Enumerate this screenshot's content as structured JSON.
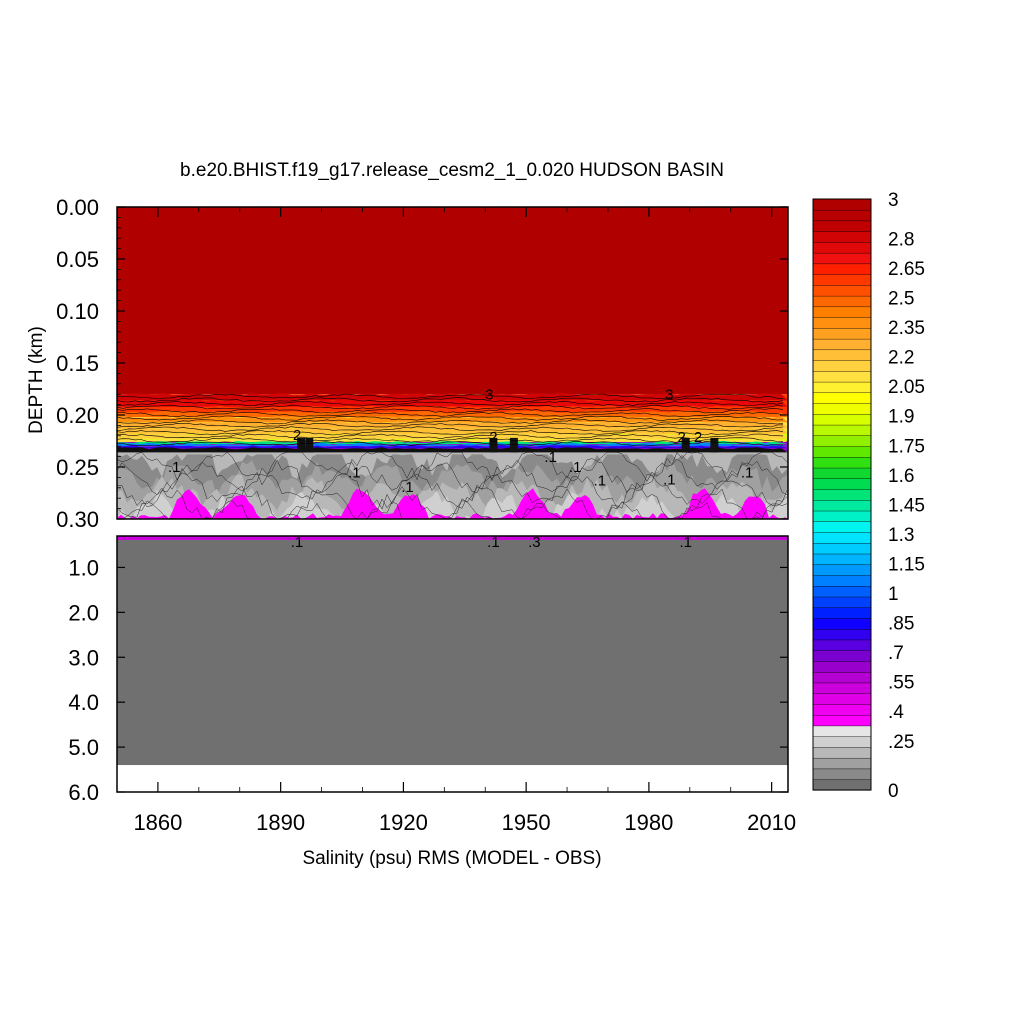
{
  "chart_data": {
    "type": "heatmap",
    "title": "b.e20.BHIST.f19_g17.release_cesm2_1_0.020 HUDSON BASIN",
    "xlabel": "Salinity (psu) RMS (MODEL - OBS)",
    "ylabel": "DEPTH (km)",
    "x_ticks": [
      "1860",
      "1890",
      "1920",
      "1950",
      "1980",
      "2010"
    ],
    "x_tick_values": [
      1860,
      1890,
      1920,
      1950,
      1980,
      2010
    ],
    "xlim": [
      1850,
      2014
    ],
    "upper_panel": {
      "ylim": [
        0.0,
        0.3
      ],
      "y_ticks": [
        "0.00",
        "0.05",
        "0.10",
        "0.15",
        "0.20",
        "0.25",
        "0.30"
      ],
      "y_tick_values": [
        0.0,
        0.05,
        0.1,
        0.15,
        0.2,
        0.25,
        0.3
      ]
    },
    "lower_panel": {
      "ylim": [
        0.3,
        6.0
      ],
      "y_ticks": [
        "1.0",
        "2.0",
        "3.0",
        "4.0",
        "5.0",
        "6.0"
      ],
      "y_tick_values": [
        1.0,
        2.0,
        3.0,
        4.0,
        5.0,
        6.0
      ],
      "bottom_data_depth": 5.4
    },
    "layers": [
      {
        "depth_from": 0.0,
        "depth_to": 0.18,
        "value": 3.0
      },
      {
        "depth_from": 0.18,
        "depth_to": 0.2,
        "value": 2.6
      },
      {
        "depth_from": 0.2,
        "depth_to": 0.215,
        "value": 2.1
      },
      {
        "depth_from": 0.215,
        "depth_to": 0.225,
        "value": 1.9
      },
      {
        "depth_from": 0.225,
        "depth_to": 0.235,
        "value": 0.6
      },
      {
        "depth_from": 0.235,
        "depth_to": 0.3,
        "value": 0.15
      },
      {
        "depth_from": 0.3,
        "depth_to": 0.35,
        "value": 0.3
      },
      {
        "depth_from": 0.35,
        "depth_to": 5.4,
        "value": 0.0
      }
    ],
    "contour_labels": {
      "upper_deep": [
        ".1",
        ".1",
        ".1",
        ".1",
        ".1",
        ".1",
        ".1",
        ".1"
      ],
      "upper_deep_years": [
        1864,
        1908,
        1921,
        1962,
        1968,
        1985,
        2004,
        1956
      ],
      "upper_deep_depths": [
        0.255,
        0.26,
        0.274,
        0.255,
        0.268,
        0.267,
        0.26,
        0.245
      ],
      "upper_mid": [
        "3",
        "3",
        "2",
        "2",
        "2",
        "2"
      ],
      "upper_mid_years": [
        1941,
        1985,
        1894,
        1942,
        1988,
        1992
      ],
      "upper_mid_depths": [
        0.185,
        0.185,
        0.224,
        0.226,
        0.226,
        0.226
      ],
      "lower": [
        ".1",
        ".1",
        ".3",
        ".1"
      ],
      "lower_years": [
        1894,
        1942,
        1952,
        1989
      ]
    },
    "colorbar": {
      "labels": [
        "3",
        "2.8",
        "2.65",
        "2.5",
        "2.35",
        "2.2",
        "2.05",
        "1.9",
        "1.75",
        "1.6",
        "1.45",
        "1.3",
        "1.15",
        "1",
        ".85",
        ".7",
        ".55",
        ".4",
        ".25",
        "0"
      ],
      "label_values": [
        3.0,
        2.8,
        2.65,
        2.5,
        2.35,
        2.2,
        2.05,
        1.9,
        1.75,
        1.6,
        1.45,
        1.3,
        1.15,
        1.0,
        0.85,
        0.7,
        0.55,
        0.4,
        0.25,
        0.0
      ],
      "range": [
        0,
        3
      ],
      "colors": [
        "#707070",
        "#8a8a8a",
        "#a0a0a0",
        "#b8b8b8",
        "#d0d0d0",
        "#e6e6e6",
        "#ff00ff",
        "#f000f0",
        "#e000e8",
        "#cc00dd",
        "#b400d2",
        "#9900cc",
        "#7a00d0",
        "#5a00e0",
        "#3200f0",
        "#1000ff",
        "#0020ff",
        "#0040ff",
        "#0060ff",
        "#0080ff",
        "#009aff",
        "#00b4ff",
        "#00ccff",
        "#00e4ff",
        "#00f4f0",
        "#00f0c8",
        "#00eaa0",
        "#00e478",
        "#00dc50",
        "#10d830",
        "#30e010",
        "#60e800",
        "#90f000",
        "#b8f800",
        "#d8ff00",
        "#f0ff00",
        "#ffff00",
        "#fff030",
        "#ffe040",
        "#ffd040",
        "#ffc038",
        "#ffb030",
        "#ffa020",
        "#ff9010",
        "#ff8000",
        "#ff6800",
        "#ff5000",
        "#ff3800",
        "#ff2000",
        "#f01010",
        "#e00808",
        "#d00404",
        "#c00000",
        "#b80000",
        "#b00000"
      ]
    }
  }
}
